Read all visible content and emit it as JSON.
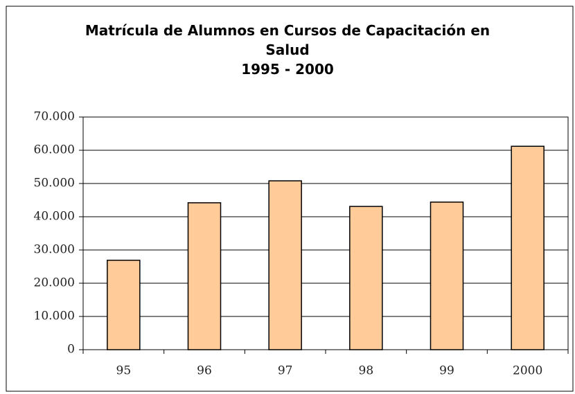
{
  "chart_data": {
    "type": "bar",
    "title": "Matrícula de Alumnos en Cursos de Capacitación en Salud",
    "subtitle": "1995 - 2000",
    "categories": [
      "95",
      "96",
      "97",
      "98",
      "99",
      "2000"
    ],
    "values": [
      26900,
      44200,
      50800,
      43100,
      44400,
      61200
    ],
    "color": "#ffcc99",
    "ylim": [
      0,
      70000
    ],
    "yticks": [
      0,
      {
        "value": 10000,
        "label": "10.000"
      },
      {
        "value": 20000,
        "label": "20.000"
      },
      {
        "value": 30000,
        "label": "30.000"
      },
      {
        "value": 40000,
        "label": "40.000"
      },
      {
        "value": 50000,
        "label": "50.000"
      },
      {
        "value": 60000,
        "label": "60.000"
      },
      {
        "value": 70000,
        "label": "70.000"
      }
    ],
    "grid": true
  }
}
